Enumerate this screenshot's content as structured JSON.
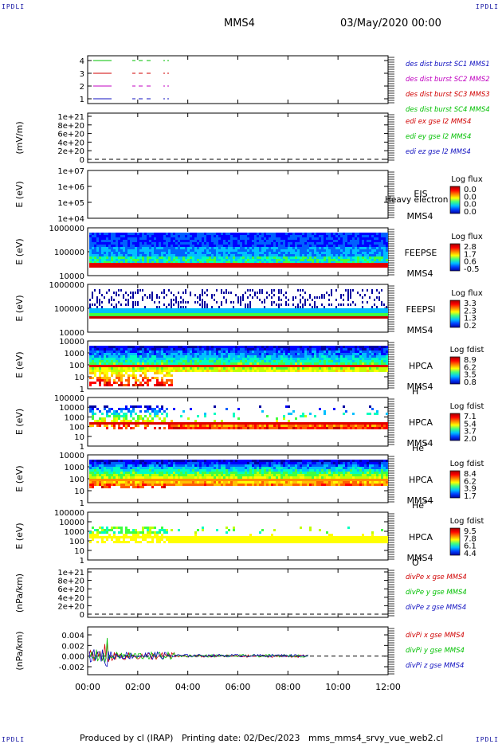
{
  "corner_label": "IPDLI",
  "header": {
    "spacecraft": "MMS4",
    "datetime": "03/May/2020 00:00"
  },
  "footer": {
    "produced_by": "Produced by cl (IRAP)",
    "printing_date": "Printing date: 02/Dec/2023",
    "script_name": "mms_mms4_srvy_vue_web2.cl"
  },
  "colors": {
    "blue": "#1010c0",
    "red": "#d00000",
    "magenta": "#c000c0",
    "green": "#00c000"
  },
  "chart_data": [
    {
      "type": "line",
      "name": "burst-coverage",
      "yticks": [
        "4",
        "3",
        "2",
        "1"
      ],
      "legend": [
        {
          "text": "des dist burst SC1 MMS1",
          "color": "#1010c0"
        },
        {
          "text": "des dist burst SC2 MMS2",
          "color": "#c000c0"
        },
        {
          "text": "des dist burst SC3 MMS3",
          "color": "#d00000"
        },
        {
          "text": "des dist burst SC4 MMS4",
          "color": "#00c000"
        }
      ]
    },
    {
      "type": "line",
      "name": "edi-e-field",
      "ylabel": "(mV/m)",
      "yticks": [
        "1e+21",
        "8e+20",
        "6e+20",
        "4e+20",
        "2e+20",
        "0"
      ],
      "legend": [
        {
          "text": "edi ex gse l2 MMS4",
          "color": "#d00000"
        },
        {
          "text": "edi ey gse l2 MMS4",
          "color": "#00c000"
        },
        {
          "text": "edi ez gse l2 MMS4",
          "color": "#1010c0"
        }
      ]
    },
    {
      "type": "heatmap",
      "name": "eis",
      "ylabel": "E (eV)",
      "yticks": [
        "1e+07",
        "1e+06",
        "1e+05",
        "1e+04"
      ],
      "instrument": [
        "EIS",
        "MMS4"
      ],
      "overlay_text": "Heavy electron to",
      "colorbar": {
        "title": "Log flux",
        "ticks": [
          "0.0",
          "0.0",
          "0.0",
          "0.0"
        ]
      }
    },
    {
      "type": "heatmap",
      "name": "feeps-electrons",
      "ylabel": "E (eV)",
      "yticks": [
        "1000000",
        "100000",
        "10000"
      ],
      "instrument": [
        "FEEPSE",
        "MMS4"
      ],
      "colorbar": {
        "title": "Log flux",
        "ticks": [
          "2.8",
          "1.7",
          "0.6",
          "-0.5"
        ]
      }
    },
    {
      "type": "heatmap",
      "name": "feeps-ions",
      "ylabel": "E (eV)",
      "yticks": [
        "1000000",
        "100000",
        "10000"
      ],
      "instrument": [
        "FEEPSI",
        "MMS4"
      ],
      "colorbar": {
        "title": "Log flux",
        "ticks": [
          "3.3",
          "2.3",
          "1.3",
          "0.2"
        ]
      }
    },
    {
      "type": "heatmap",
      "name": "hpca-h",
      "ylabel": "E (eV)",
      "yticks": [
        "10000",
        "1000",
        "100",
        "10",
        "1"
      ],
      "instrument": [
        "HPCA",
        "MMS4"
      ],
      "species": "H",
      "species_charge": "+",
      "colorbar": {
        "title": "Log fdist",
        "ticks": [
          "8.9",
          "6.2",
          "3.5",
          "0.8"
        ]
      }
    },
    {
      "type": "heatmap",
      "name": "hpca-he",
      "ylabel": "E (eV)",
      "yticks": [
        "100000",
        "10000",
        "1000",
        "100",
        "10",
        "1"
      ],
      "instrument": [
        "HPCA",
        "MMS4"
      ],
      "species": "He",
      "species_charge": "+",
      "colorbar": {
        "title": "Log fdist",
        "ticks": [
          "7.1",
          "5.4",
          "3.7",
          "2.0"
        ]
      }
    },
    {
      "type": "heatmap",
      "name": "hpca-hepp",
      "ylabel": "E (eV)",
      "yticks": [
        "10000",
        "1000",
        "100",
        "10",
        "1"
      ],
      "instrument": [
        "HPCA",
        "MMS4"
      ],
      "species": "He",
      "species_charge": "++",
      "colorbar": {
        "title": "Log fdist",
        "ticks": [
          "8.4",
          "6.2",
          "3.9",
          "1.7"
        ]
      }
    },
    {
      "type": "heatmap",
      "name": "hpca-o",
      "ylabel": "E (eV)",
      "yticks": [
        "100000",
        "10000",
        "1000",
        "100",
        "10",
        "1"
      ],
      "instrument": [
        "HPCA",
        "MMS4"
      ],
      "species": "O",
      "species_charge": "+",
      "colorbar": {
        "title": "Log fdist",
        "ticks": [
          "9.5",
          "7.8",
          "6.1",
          "4.4"
        ]
      }
    },
    {
      "type": "line",
      "name": "div-pe",
      "ylabel": "(nPa/km)",
      "yticks": [
        "1e+21",
        "8e+20",
        "6e+20",
        "4e+20",
        "2e+20",
        "0"
      ],
      "legend": [
        {
          "text": "divPe x gse MMS4",
          "color": "#d00000"
        },
        {
          "text": "divPe y gse MMS4",
          "color": "#00c000"
        },
        {
          "text": "divPe z gse MMS4",
          "color": "#1010c0"
        }
      ]
    },
    {
      "type": "line",
      "name": "div-pi",
      "ylabel": "(nPa/km)",
      "yticks": [
        "0.004",
        "0.002",
        "0.000",
        "-0.002"
      ],
      "ylim": [
        -0.0035,
        0.0055
      ],
      "legend": [
        {
          "text": "divPi x gse MMS4",
          "color": "#d00000"
        },
        {
          "text": "divPi y gse MMS4",
          "color": "#00c000"
        },
        {
          "text": "divPi z gse MMS4",
          "color": "#1010c0"
        }
      ]
    }
  ],
  "time_axis": {
    "ticks": [
      "00:00",
      "02:00",
      "04:00",
      "06:00",
      "08:00",
      "10:00",
      "12:00"
    ],
    "xlim_hours": [
      0,
      12
    ]
  }
}
